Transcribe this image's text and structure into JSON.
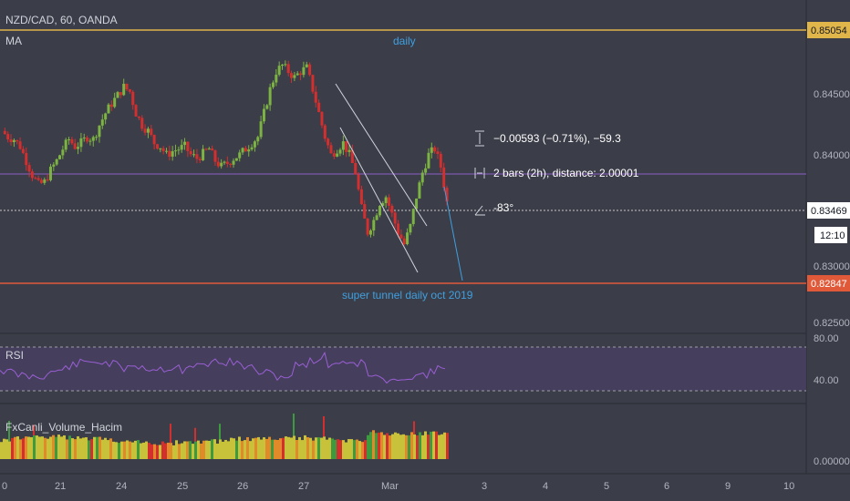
{
  "header": {
    "symbol": "NZD/CAD, 60, OANDA",
    "indicator_ma": "MA",
    "annotation_top": "daily",
    "annotation_bottom": "super tunnel daily oct 2019"
  },
  "colors": {
    "background": "#3b3d48",
    "candle_up": "#7cb342",
    "candle_down": "#d32f2f",
    "top_line": "#e0b54a",
    "bottom_line": "#e05a3a",
    "purple_line": "#8e5fc7",
    "annotation": "#3fa0e0",
    "rsi_line": "#9a5fd6",
    "volume_fill": "#c8c23a"
  },
  "price_axis": {
    "ticks": [
      "0.84500",
      "0.84000",
      "0.83000",
      "0.82500"
    ],
    "top_level": "0.85054",
    "current": "0.83469",
    "timer": "12:10",
    "bottom_level": "0.82847"
  },
  "measurement": {
    "price_change": "−0.00593 (−0.71%), −59.3",
    "bars": "2 bars (2h), distance: 2.00001",
    "angle": "-83°",
    "price_icon": "price-range-icon",
    "bars_icon": "date-range-icon",
    "angle_icon": "angle-icon"
  },
  "rsi": {
    "label": "RSI",
    "ticks": [
      "80.00",
      "40.00"
    ]
  },
  "volume": {
    "label": "FxCanli_Volume_Hacim",
    "tick": "0.00000"
  },
  "time_axis": {
    "labels": [
      "0",
      "21",
      "24",
      "25",
      "26",
      "27",
      "Mar",
      "3",
      "4",
      "5",
      "6",
      "9",
      "10"
    ]
  },
  "chart_data": {
    "type": "candlestick",
    "symbol": "NZD/CAD",
    "interval": "60",
    "ylim": [
      0.8235,
      0.8515
    ],
    "series_close_path": [
      0.8405,
      0.84,
      0.8398,
      0.8392,
      0.838,
      0.8368,
      0.836,
      0.8362,
      0.8372,
      0.838,
      0.839,
      0.8398,
      0.8392,
      0.8395,
      0.84,
      0.8398,
      0.841,
      0.842,
      0.8428,
      0.8435,
      0.8442,
      0.8438,
      0.842,
      0.841,
      0.8405,
      0.8395,
      0.8392,
      0.8385,
      0.8388,
      0.839,
      0.8392,
      0.8385,
      0.8382,
      0.8386,
      0.839,
      0.838,
      0.8375,
      0.8378,
      0.8382,
      0.8385,
      0.839,
      0.8395,
      0.84,
      0.842,
      0.844,
      0.8455,
      0.846,
      0.8455,
      0.845,
      0.8455,
      0.8458,
      0.844,
      0.842,
      0.84,
      0.8385,
      0.839,
      0.8395,
      0.8385,
      0.837,
      0.834,
      0.832,
      0.833,
      0.8345,
      0.835,
      0.8335,
      0.832,
      0.831,
      0.8325,
      0.835,
      0.837,
      0.8385,
      0.839,
      0.8375,
      0.8345
    ],
    "levels": {
      "top": 0.85054,
      "current": 0.83469,
      "bottom": 0.82847
    }
  }
}
